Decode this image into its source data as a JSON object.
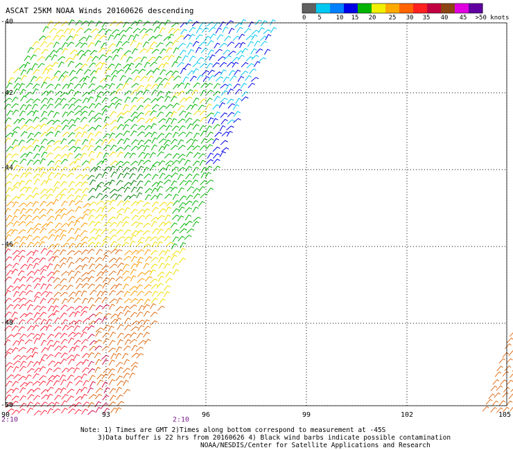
{
  "title": "ASCAT 25KM NOAA Winds 20160626 descending",
  "legend": {
    "labels": [
      "0",
      "5",
      "10",
      "15",
      "20",
      "25",
      "30",
      "35",
      "40",
      "45",
      ">50 knots"
    ],
    "colors": [
      "#606060",
      "#00c8f0",
      "#0080ff",
      "#0000e6",
      "#00b400",
      "#f0f000",
      "#ffaa00",
      "#ff6400",
      "#ff2020",
      "#c00040",
      "#8b4513",
      "#e000e0",
      "#6000a0"
    ]
  },
  "latitudes": [
    "-40",
    "-42",
    "-44",
    "-46",
    "-48",
    "-50"
  ],
  "longitudes": [
    "90",
    "93",
    "96",
    "99",
    "102",
    "105"
  ],
  "times": [
    "2:10",
    "2:10"
  ],
  "notes": {
    "line1": "Note: 1) Times are GMT 2)Times along bottom correspond to measurement at -45S",
    "line2": "3)Data buffer is 22 hrs from 20160626 4) Black wind barbs indicate possible contamination",
    "line3": "NOAA/NESDIS/Center for Satellite Applications and Research"
  }
}
